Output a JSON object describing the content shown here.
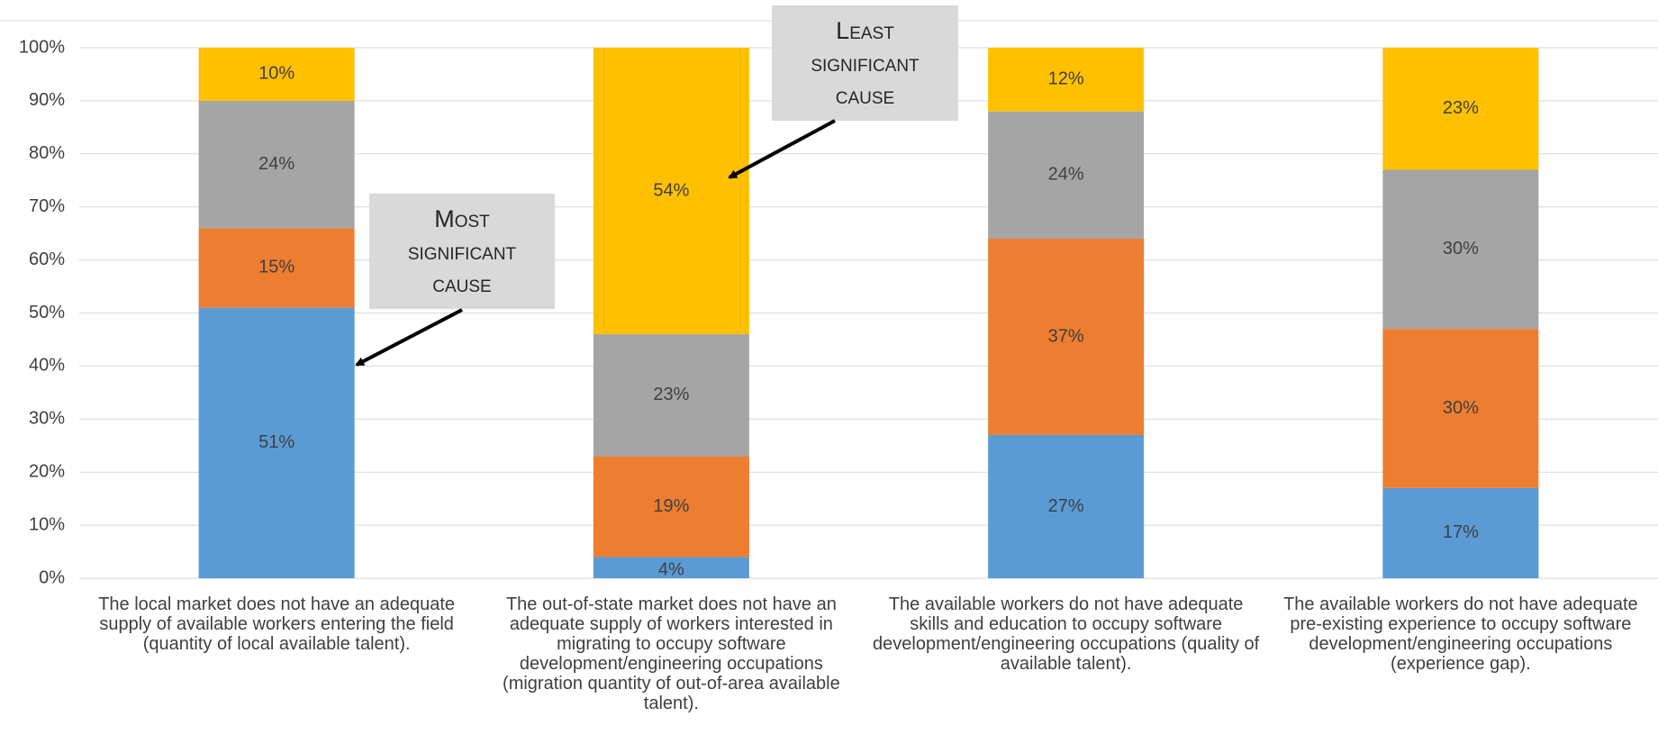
{
  "chart_data": {
    "type": "stacked_bar",
    "categories": [
      "The local market does not have an adequate supply of available workers entering the field (quantity of local available talent).",
      "The out-of-state market does not have an adequate supply of workers interested in migrating to occupy software development/engineering occupations (migration quantity of out-of-area available talent).",
      "The available workers do not have adequate skills and education to occupy software development/engineering occupations (quality of available talent).",
      "The available workers do not have adequate pre-existing experience to occupy software development/engineering occupations (experience gap)."
    ],
    "series": [
      {
        "color": "#5b9bd5",
        "values": [
          51,
          4,
          27,
          17
        ],
        "value_labels": [
          "51%",
          "4%",
          "27%",
          "17%"
        ]
      },
      {
        "color": "#ed7d31",
        "values": [
          15,
          19,
          37,
          30
        ],
        "value_labels": [
          "15%",
          "19%",
          "37%",
          "30%"
        ]
      },
      {
        "color": "#a5a5a5",
        "values": [
          24,
          23,
          24,
          30
        ],
        "value_labels": [
          "24%",
          "23%",
          "24%",
          "30%"
        ]
      },
      {
        "color": "#ffc000",
        "values": [
          10,
          54,
          12,
          23
        ],
        "value_labels": [
          "10%",
          "54%",
          "12%",
          "23%"
        ]
      }
    ],
    "ylim": [
      0,
      100
    ],
    "yticks": [
      {
        "value": 0,
        "label": "0%"
      },
      {
        "value": 10,
        "label": "10%"
      },
      {
        "value": 20,
        "label": "20%"
      },
      {
        "value": 30,
        "label": "30%"
      },
      {
        "value": 40,
        "label": "40%"
      },
      {
        "value": 50,
        "label": "50%"
      },
      {
        "value": 60,
        "label": "60%"
      },
      {
        "value": 70,
        "label": "70%"
      },
      {
        "value": 80,
        "label": "80%"
      },
      {
        "value": 90,
        "label": "90%"
      },
      {
        "value": 100,
        "label": "100%"
      }
    ],
    "grid": true,
    "annotations": [
      {
        "lines": [
          "Most",
          "significant",
          "cause"
        ]
      },
      {
        "lines": [
          "Least",
          "significant",
          "cause"
        ]
      }
    ]
  }
}
